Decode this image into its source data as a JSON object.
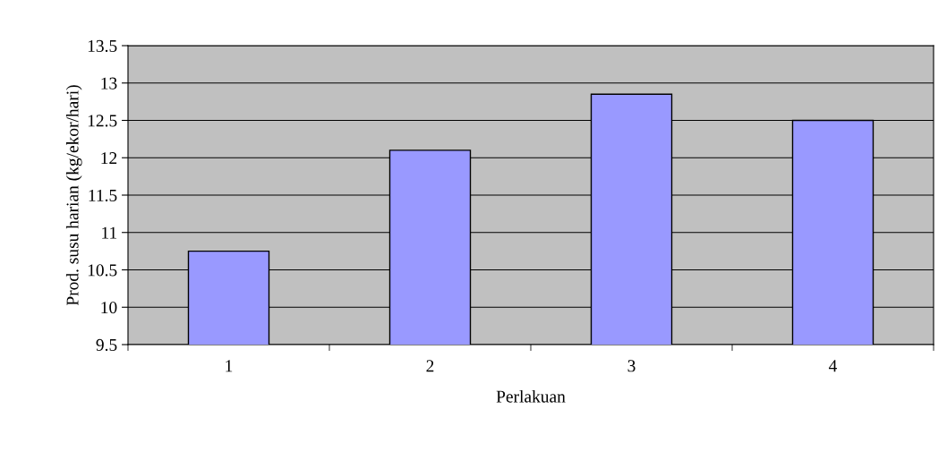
{
  "chart_data": {
    "type": "bar",
    "xlabel": "Perlakuan",
    "ylabel": "Prod. susu harian (kg/ekor/hari)",
    "categories": [
      "1",
      "2",
      "3",
      "4"
    ],
    "values": [
      10.75,
      12.1,
      12.85,
      12.5
    ],
    "color": "#9999ff",
    "ylim": [
      9.5,
      13.5
    ],
    "yticks": [
      9.5,
      10,
      10.5,
      11,
      11.5,
      12,
      12.5,
      13,
      13.5
    ],
    "grid": "y",
    "legend": false
  }
}
